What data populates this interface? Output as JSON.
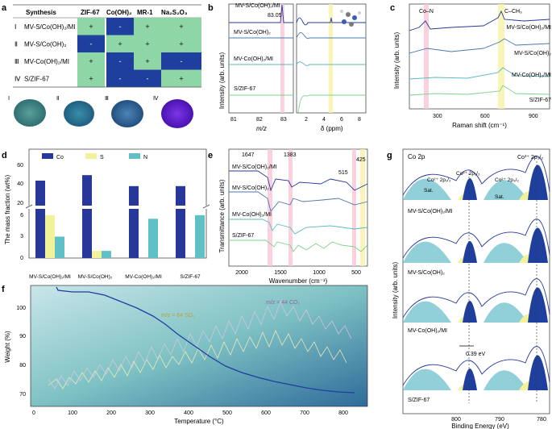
{
  "panel_labels": {
    "a": "a",
    "b": "b",
    "c": "c",
    "d": "d",
    "e": "e",
    "f": "f",
    "g": "g"
  },
  "panel_a": {
    "headers": [
      "Synthesis",
      "ZIF-67",
      "Co(OH)₂",
      "MR-1",
      "Na₂S₂O₃"
    ],
    "rows": [
      {
        "roman": "Ⅰ",
        "name": "MV-S/Co(OH)₂/MI",
        "cells": [
          "+",
          "-",
          "+",
          "+"
        ]
      },
      {
        "roman": "Ⅱ",
        "name": "MV-S/Co(OH)₂",
        "cells": [
          "-",
          "+",
          "+",
          "+"
        ]
      },
      {
        "roman": "Ⅲ",
        "name": "MV-Co(OH)₂/MI",
        "cells": [
          "+",
          "-",
          "+",
          "-"
        ]
      },
      {
        "roman": "Ⅳ",
        "name": "S/ZIF-67",
        "cells": [
          "+",
          "-",
          "-",
          "+"
        ]
      }
    ],
    "photo_labels": [
      "Ⅰ",
      "Ⅱ",
      "Ⅲ",
      "Ⅳ"
    ],
    "colors": {
      "green": "#8fd6a6",
      "blue": "#1f3f9e"
    }
  },
  "panel_b": {
    "ylabel": "Intensity (arb. units)",
    "xlabel_left": "m/z",
    "xlabel_right": "δ (ppm)",
    "annotation": "83.05",
    "series": [
      "MV-S/Co(OH)₂/MI",
      "MV-S/Co(OH)₂",
      "MV-Co(OH)₂/MI",
      "S/ZIF-67"
    ],
    "xticks_left": [
      "81",
      "82",
      "83"
    ],
    "xticks_right": [
      "2",
      "4",
      "6",
      "8"
    ]
  },
  "panel_c": {
    "ylabel": "Intensity (arb. units)",
    "xlabel": "Raman shift (cm⁻¹)",
    "annotations": [
      "Co–N",
      "C–CH₃"
    ],
    "series": [
      "MV-S/Co(OH)₂/MI",
      "MV-S/Co(OH)₂",
      "MV-Co(OH)₂/MI",
      "S/ZIF-67"
    ],
    "xticks": [
      "300",
      "600",
      "900"
    ]
  },
  "chart_data": {
    "type": "bar",
    "title": "",
    "ylabel": "The mass fraction (wt%)",
    "legend": [
      "Co",
      "S",
      "N"
    ],
    "categories": [
      "MV-S/Co(OH)₂/MI",
      "MV-S/Co(OH)₂",
      "MV-Co(OH)₂/MI",
      "S/ZIF-67"
    ],
    "series": [
      {
        "name": "Co",
        "color": "#27389a",
        "values": [
          40,
          45,
          35,
          35
        ]
      },
      {
        "name": "S",
        "color": "#f2f29a",
        "values": [
          6,
          1,
          0,
          0
        ]
      },
      {
        "name": "N",
        "color": "#5fc0c6",
        "values": [
          3,
          1,
          5.5,
          6
        ]
      }
    ],
    "yticks_low": [
      "0",
      "3",
      "6"
    ],
    "yticks_high": [
      "20",
      "40",
      "60"
    ],
    "axis_break": true
  },
  "panel_e": {
    "ylabel": "Transmittance (arb. units)",
    "xlabel": "Wavenumber (cm⁻¹)",
    "peaks": [
      "1647",
      "1383",
      "515",
      "425"
    ],
    "series": [
      "MV-S/Co(OH)₂/MI",
      "MV-S/Co(OH)₂",
      "MV-Co(OH)₂/MI",
      "S/ZIF-67"
    ],
    "xticks": [
      "2000",
      "1500",
      "1000",
      "500"
    ]
  },
  "panel_f": {
    "ylabel": "Weight (%)",
    "xlabel": "Temperature (°C)",
    "yticks": [
      "70",
      "80",
      "90",
      "100"
    ],
    "xticks": [
      "0",
      "100",
      "200",
      "300",
      "400",
      "500",
      "600",
      "700",
      "800"
    ],
    "ms_labels": [
      "m/z = 64  SO₂",
      "m/z = 44  CO₂"
    ]
  },
  "panel_g": {
    "title": "Co 2p",
    "ylabel": "Intensity (arb. units)",
    "xlabel": "Binding Energy (eV)",
    "labels": [
      "Co³⁺ 2p₃/₂",
      "Co³⁺ 2p₁/₂",
      "Co²⁺ 2p₁/₂",
      "Co²⁺ 2p₃/₂",
      "Sat.",
      "Sat."
    ],
    "shift": "0.39 eV",
    "series": [
      "MV-S/Co(OH)₂/MI",
      "MV-S/Co(OH)₂",
      "MV-Co(OH)₂/MI",
      "S/ZIF-67"
    ],
    "xticks": [
      "800",
      "790",
      "780"
    ]
  }
}
